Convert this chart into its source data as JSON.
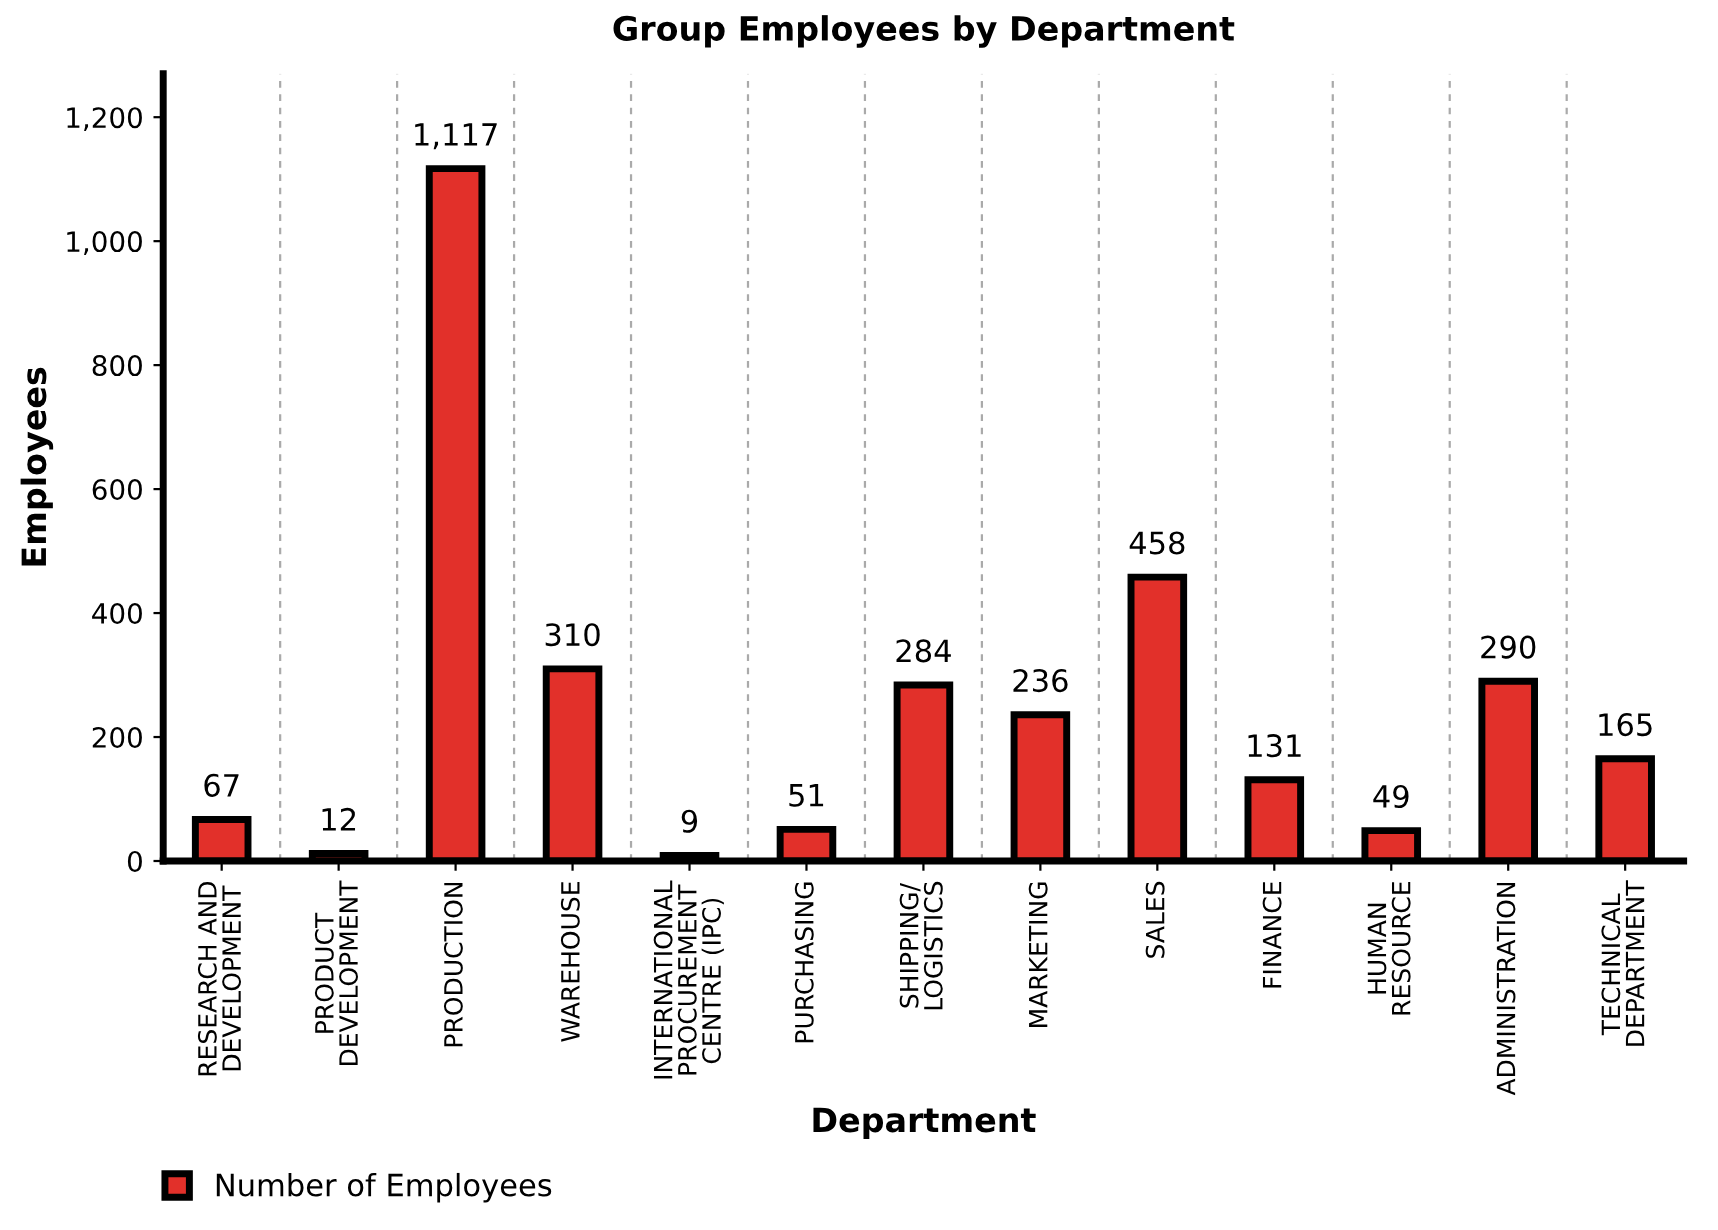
{
  "chart_data": {
    "type": "bar",
    "title": "Group Employees by Department",
    "xlabel": "Department",
    "ylabel": "Employees",
    "categories": [
      "RESEARCH AND\nDEVELOPMENT",
      "PRODUCT\nDEVELOPMENT",
      "PRODUCTION",
      "WAREHOUSE",
      "INTERNATIONAL\nPROCUREMENT\nCENTRE (IPC)",
      "PURCHASING",
      "SHIPPING/\nLOGISTICS",
      "MARKETING",
      "SALES",
      "FINANCE",
      "HUMAN\nRESOURCE",
      "ADMINISTRATION",
      "TECHNICAL\nDEPARTMENT"
    ],
    "series": [
      {
        "name": "Number of Employees",
        "color": "#e2302a",
        "values": [
          67,
          12,
          1117,
          310,
          9,
          51,
          284,
          236,
          458,
          131,
          49,
          290,
          165
        ],
        "value_labels": [
          "67",
          "12",
          "1,117",
          "310",
          "9",
          "51",
          "284",
          "236",
          "458",
          "131",
          "49",
          "290",
          "165"
        ]
      }
    ],
    "ylim": [
      0,
      1270
    ],
    "yticks": [
      0,
      200,
      400,
      600,
      800,
      {
        "value": 1000,
        "label": "1,000"
      },
      {
        "value": 1200,
        "label": "1,200"
      }
    ],
    "grid": "x",
    "legend": "bottom left"
  }
}
